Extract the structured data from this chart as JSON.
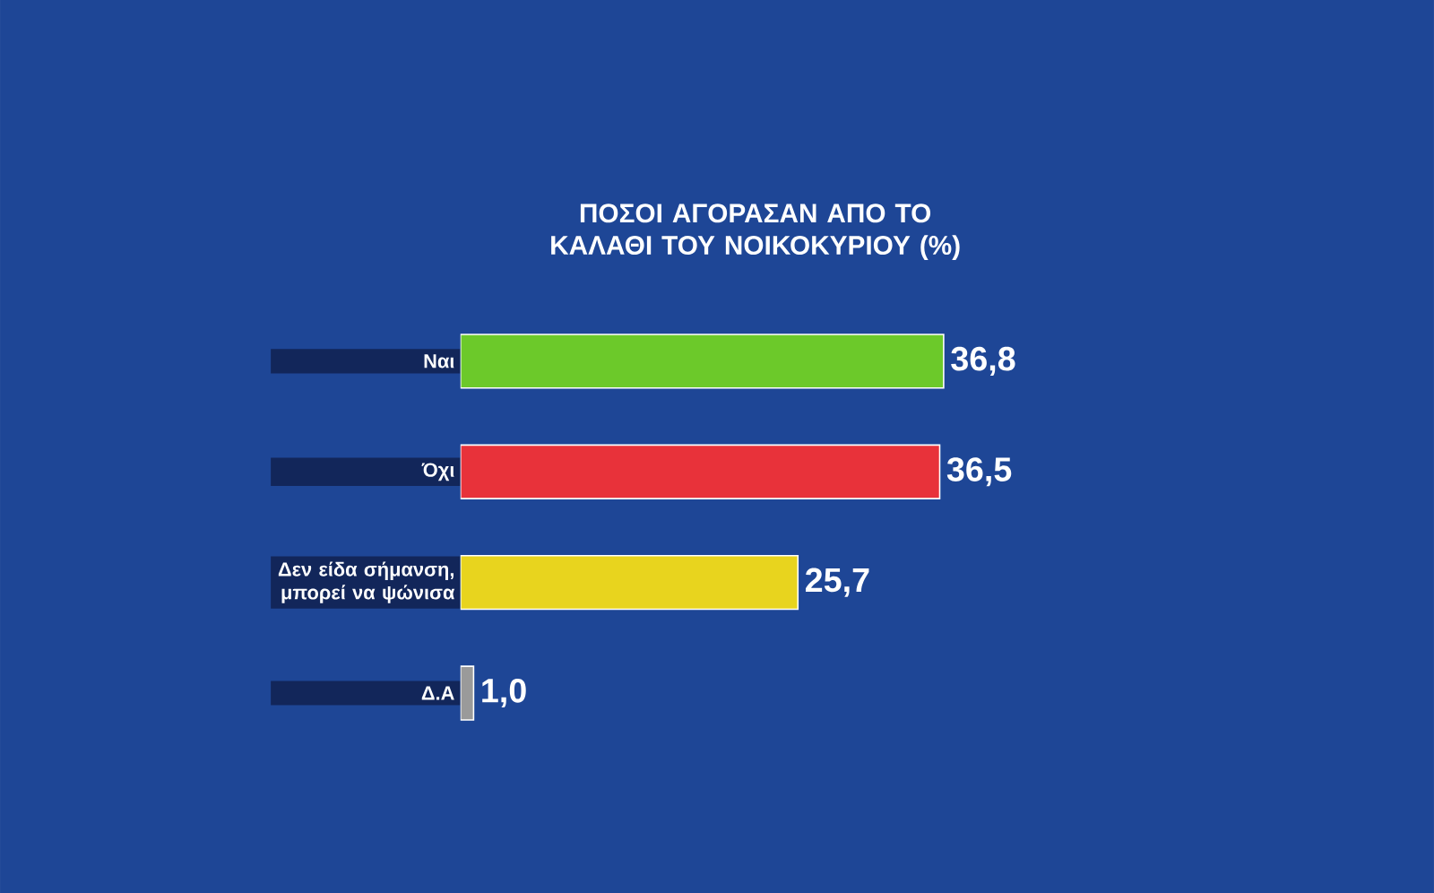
{
  "chart_data": {
    "type": "bar",
    "orientation": "horizontal",
    "title": "ΠΟΣΟΙ ΑΓΟΡΑΣΑΝ ΑΠΟ ΤΟ ΚΑΛΑΘΙ ΤΟΥ ΝΟΙΚΟΚΥΡΙΟΥ (%)",
    "categories": [
      "Ναι",
      "Όχι",
      "Δεν είδα σήμανση, μπορεί να ψώνισα",
      "Δ.Α"
    ],
    "values": [
      36.8,
      36.5,
      25.7,
      1.0
    ],
    "colors": [
      "#6cc92a",
      "#e8323a",
      "#e8d41e",
      "#9a9a9a"
    ],
    "value_labels": [
      "36,8",
      "36,5",
      "25,7",
      "1,0"
    ]
  }
}
